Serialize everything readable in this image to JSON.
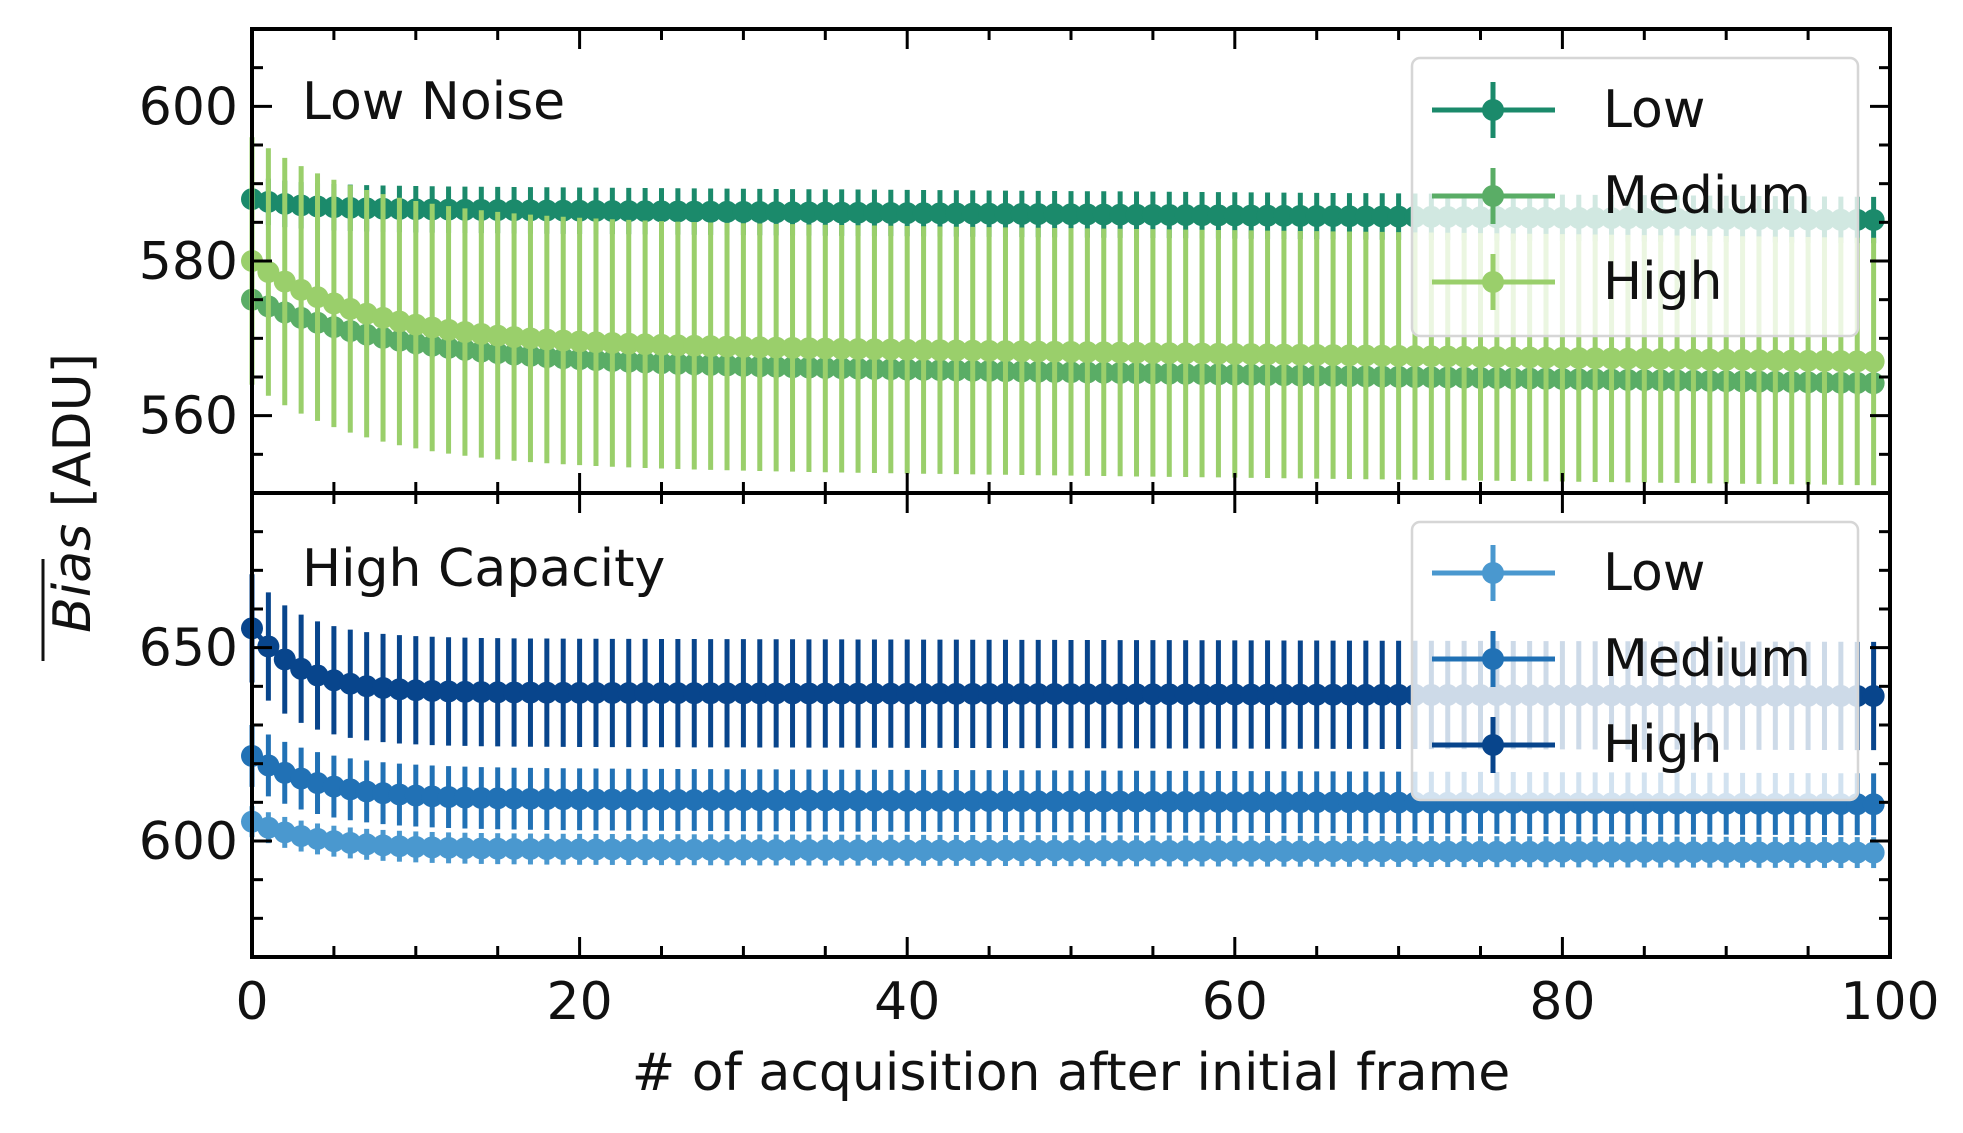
{
  "chart_data": [
    {
      "type": "line",
      "panel": "top",
      "title": "Low Noise",
      "xlabel": "# of acquisition after initial frame",
      "ylabel": "Bias [ADU]",
      "xlim": [
        0,
        100
      ],
      "ylim": [
        550,
        610
      ],
      "xticks": [
        "0",
        "20",
        "40",
        "60",
        "80",
        "100"
      ],
      "yticks": [
        "560",
        "580",
        "600"
      ],
      "legend_position": "top-right",
      "x_range": [
        0,
        99
      ],
      "series": [
        {
          "name": "Low",
          "color": "#1b8a6b",
          "start": 588.0,
          "plateau": 586.8,
          "end": 585.3,
          "decay": 3,
          "err": 3
        },
        {
          "name": "Medium",
          "color": "#5aad66",
          "start": 575.0,
          "plateau": 567.0,
          "end": 564.2,
          "decay": 9,
          "err": 1.5
        },
        {
          "name": "High",
          "color": "#9acf6b",
          "start": 580.0,
          "plateau": 569.5,
          "end": 567.0,
          "decay": 7,
          "err": 16
        }
      ]
    },
    {
      "type": "line",
      "panel": "bottom",
      "title": "High Capacity",
      "xlabel": "# of acquisition after initial frame",
      "ylabel": "Bias [ADU]",
      "xlim": [
        0,
        100
      ],
      "ylim": [
        570,
        690
      ],
      "xticks": [
        "0",
        "20",
        "40",
        "60",
        "80",
        "100"
      ],
      "yticks": [
        "600",
        "650"
      ],
      "legend_position": "top-right",
      "x_range": [
        0,
        99
      ],
      "series": [
        {
          "name": "Low",
          "color": "#4a98cf",
          "start": 605.0,
          "plateau": 598.0,
          "end": 597.0,
          "decay": 4,
          "err": 4
        },
        {
          "name": "Medium",
          "color": "#2171b5",
          "start": 622.0,
          "plateau": 611.0,
          "end": 609.5,
          "decay": 4,
          "err": 8
        },
        {
          "name": "High",
          "color": "#08458c",
          "start": 655.0,
          "plateau": 638.5,
          "end": 637.5,
          "decay": 3,
          "err": 14
        }
      ]
    }
  ],
  "shared": {
    "xlabel": "# of acquisition after initial frame",
    "ylabel_bar": "Bias",
    "ylabel_unit": " [ADU]"
  }
}
